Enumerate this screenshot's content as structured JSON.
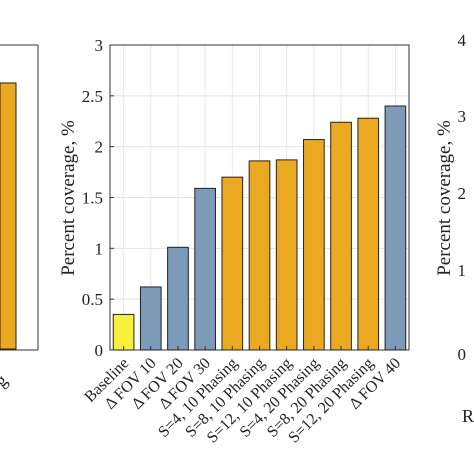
{
  "chart_data": [
    {
      "type": "bar",
      "ylim": [
        0,
        3
      ],
      "yticks": [
        0,
        0.5,
        1,
        1.5,
        2,
        2.5,
        3
      ],
      "ytick_labels": [
        "0",
        "0.5",
        "1",
        "1.5",
        "2",
        "2.5",
        "3"
      ],
      "ylabel": "Percent coverage, %",
      "grid": true,
      "categories": [
        "Baseline",
        "Δ FOV 10",
        "Δ FOV 20",
        "Δ FOV 30",
        "S=4, 10 Phasing",
        "S=8, 10 Phasing",
        "S=12, 10 Phasing",
        "S=4, 20 Phasing",
        "S=8, 20 Phasing",
        "S=12, 20 Phasing",
        "Δ FOV 40"
      ],
      "values": [
        0.35,
        0.62,
        1.01,
        1.59,
        1.7,
        1.86,
        1.87,
        2.07,
        2.24,
        2.28,
        2.4
      ],
      "colors": [
        "#f6f03a",
        "#7b9bb8",
        "#7b9bb8",
        "#7b9bb8",
        "#eaa921",
        "#eaa921",
        "#eaa921",
        "#eaa921",
        "#eaa921",
        "#eaa921",
        "#7b9bb8"
      ]
    }
  ],
  "left_partial": {
    "bar_color": "#eaa921",
    "tick_fragment": "g"
  },
  "right_partial": {
    "ylabel": "Percent coverage, %",
    "ytick_labels": [
      "0",
      "1",
      "2",
      "3",
      "4"
    ],
    "xtick_fragment": "R"
  }
}
